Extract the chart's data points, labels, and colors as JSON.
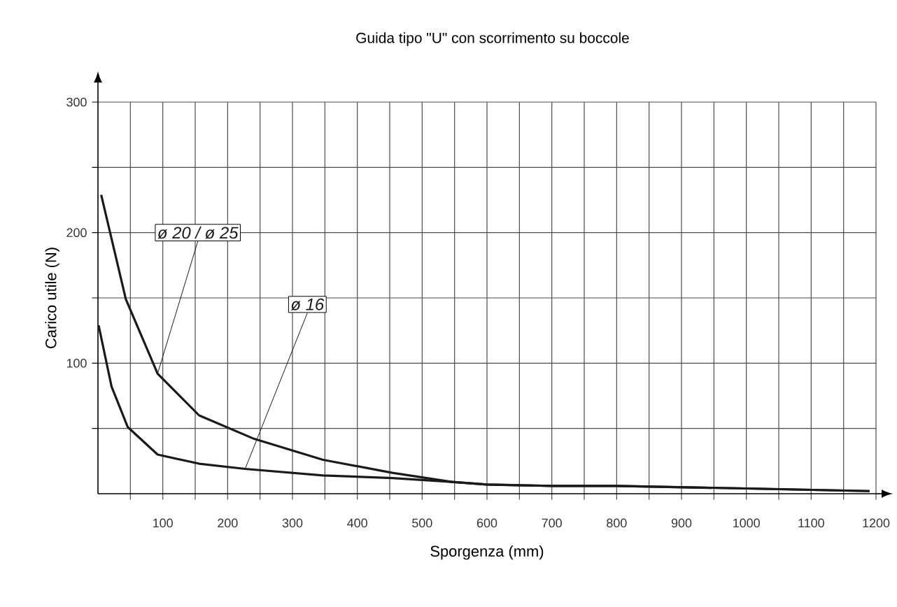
{
  "chart_data": {
    "type": "line",
    "title": "Guida tipo \"U\" con scorrimento su boccole",
    "xlabel": "Sporgenza (mm)",
    "ylabel": "Carico utile (N)",
    "xlim": [
      0,
      1200
    ],
    "ylim": [
      0,
      300
    ],
    "xticks": [
      {
        "value": 50,
        "label": null
      },
      100,
      {
        "value": 150,
        "label": null
      },
      200,
      {
        "value": 250,
        "label": null
      },
      300,
      {
        "value": 350,
        "label": null
      },
      400,
      {
        "value": 450,
        "label": null
      },
      500,
      {
        "value": 550,
        "label": null
      },
      600,
      {
        "value": 650,
        "label": null
      },
      700,
      {
        "value": 750,
        "label": null
      },
      800,
      {
        "value": 850,
        "label": null
      },
      900,
      {
        "value": 950,
        "label": null
      },
      1000,
      {
        "value": 1050,
        "label": null
      },
      1100,
      {
        "value": 1150,
        "label": null
      },
      1200
    ],
    "yticks": [
      {
        "value": 50,
        "label": null
      },
      100,
      {
        "value": 150,
        "label": null
      },
      200,
      {
        "value": 250,
        "label": null
      },
      300
    ],
    "grid": true,
    "marker": "none",
    "line_style": "solid",
    "series": [
      {
        "name": "ø 20 / ø 25",
        "color": "#1a1a1a",
        "x": [
          5,
          43,
          92,
          156,
          241,
          347,
          454,
          546,
          600,
          700,
          800,
          1000,
          1190
        ],
        "values": [
          229,
          149,
          92,
          60,
          42,
          26,
          16,
          9,
          7,
          6,
          6,
          4,
          2
        ]
      },
      {
        "name": "ø 16",
        "color": "#1a1a1a",
        "x": [
          1,
          21,
          46,
          92,
          156,
          227,
          347,
          454,
          546,
          600,
          700,
          800,
          1000,
          1190
        ],
        "values": [
          129,
          82,
          51,
          30,
          23,
          19,
          14,
          12,
          9,
          7,
          6,
          6,
          4,
          2
        ]
      }
    ]
  }
}
